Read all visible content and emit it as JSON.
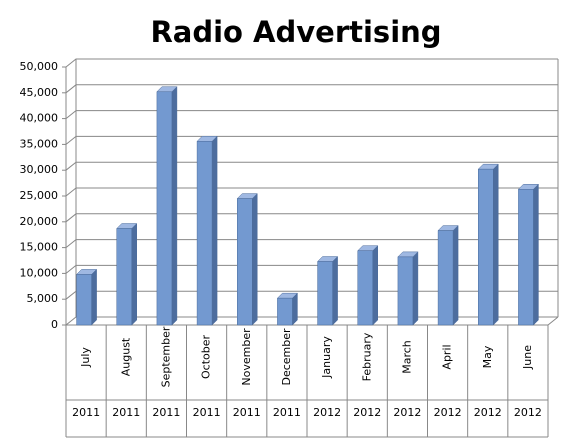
{
  "chart_data": {
    "type": "bar3d",
    "title": "Radio Advertising",
    "categories": [
      "July",
      "August",
      "September",
      "October",
      "November",
      "December",
      "January",
      "February",
      "March",
      "April",
      "May",
      "June"
    ],
    "years": [
      "2011",
      "2011",
      "2011",
      "2011",
      "2011",
      "2011",
      "2012",
      "2012",
      "2012",
      "2012",
      "2012",
      "2012"
    ],
    "values": [
      9800,
      18700,
      45200,
      35600,
      24500,
      5200,
      12300,
      14400,
      13200,
      18300,
      30200,
      26300
    ],
    "color": "#7399d0",
    "ylim": [
      0,
      50000
    ],
    "yticks": [
      0,
      {
        "value": 5000,
        "label": "5,000"
      },
      {
        "value": 10000,
        "label": "10,000"
      },
      {
        "value": 15000,
        "label": "15,000"
      },
      {
        "value": 20000,
        "label": "20,000"
      },
      {
        "value": 25000,
        "label": "25,000"
      },
      {
        "value": 30000,
        "label": "30,000"
      },
      {
        "value": 35000,
        "label": "35,000"
      },
      {
        "value": 40000,
        "label": "40,000"
      },
      {
        "value": 45000,
        "label": "45,000"
      },
      {
        "value": 50000,
        "label": "50,000"
      }
    ],
    "grid": true
  }
}
